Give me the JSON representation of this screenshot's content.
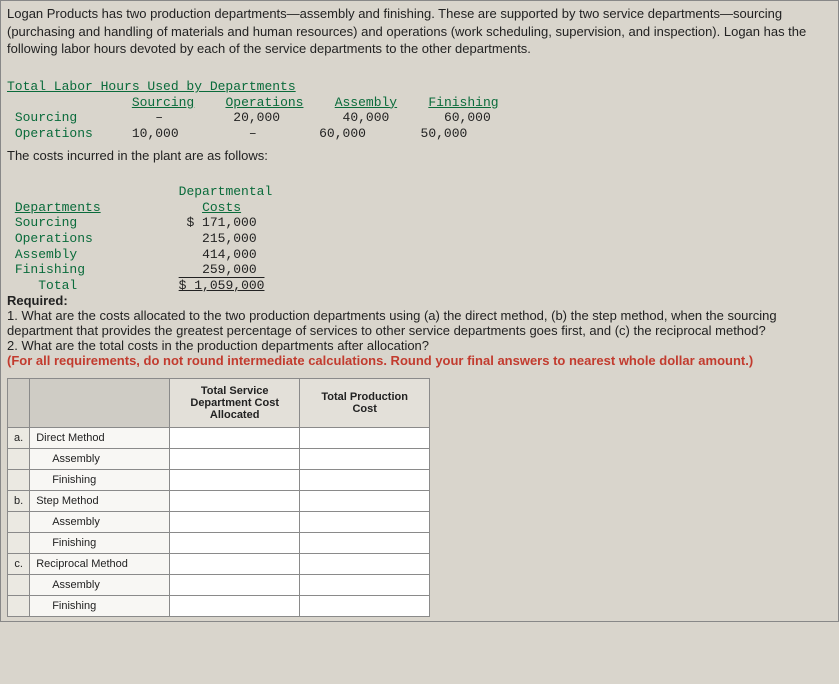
{
  "intro": "Logan Products has two production departments—assembly and finishing. These are supported by two service departments—sourcing (purchasing and handling of materials and human resources) and operations (work scheduling, supervision, and inspection). Logan has the following labor hours devoted by each of the service departments to the other departments.",
  "laborTable": {
    "title": "Total Labor Hours Used by Departments",
    "cols": [
      "Sourcing",
      "Operations",
      "Assembly",
      "Finishing"
    ],
    "rows": [
      {
        "label": "Sourcing",
        "cells": [
          "–",
          "20,000",
          "40,000",
          "60,000"
        ]
      },
      {
        "label": "Operations",
        "cells": [
          "10,000",
          "–",
          "60,000",
          "50,000"
        ]
      }
    ]
  },
  "narr1": "The costs incurred in the plant are as follows:",
  "costTable": {
    "header": [
      "Departments",
      "Departmental Costs"
    ],
    "rows": [
      {
        "label": "Sourcing",
        "val": "$ 171,000"
      },
      {
        "label": "Operations",
        "val": "215,000"
      },
      {
        "label": "Assembly",
        "val": "414,000"
      },
      {
        "label": "Finishing",
        "val": "259,000"
      },
      {
        "label": "Total",
        "val": "$ 1,059,000"
      }
    ]
  },
  "required": {
    "head": "Required:",
    "q1": "1. What are the costs allocated to the two production departments using (a) the direct method, (b) the step method, when the sourcing department that provides the greatest percentage of services to other service departments goes first, and (c) the reciprocal method?",
    "q2": "2. What are the total costs in the production departments after allocation?",
    "note": "(For all requirements, do not round intermediate calculations. Round your final answers to nearest whole dollar amount.)"
  },
  "answer": {
    "headers": [
      "",
      "",
      "Total Service Department Cost Allocated",
      "Total Production Cost"
    ],
    "rows": [
      {
        "lab": "a.",
        "name": "Direct Method",
        "svc": "",
        "prod": ""
      },
      {
        "lab": "",
        "name": "Assembly",
        "svc": "",
        "prod": "",
        "indent": true
      },
      {
        "lab": "",
        "name": "Finishing",
        "svc": "",
        "prod": "",
        "indent": true
      },
      {
        "lab": "b.",
        "name": "Step Method",
        "svc": "",
        "prod": ""
      },
      {
        "lab": "",
        "name": "Assembly",
        "svc": "",
        "prod": "",
        "indent": true
      },
      {
        "lab": "",
        "name": "Finishing",
        "svc": "",
        "prod": "",
        "indent": true
      },
      {
        "lab": "c.",
        "name": "Reciprocal Method",
        "svc": "",
        "prod": ""
      },
      {
        "lab": "",
        "name": "Assembly",
        "svc": "",
        "prod": "",
        "indent": true
      },
      {
        "lab": "",
        "name": "Finishing",
        "svc": "",
        "prod": "",
        "indent": true
      }
    ]
  },
  "style": {
    "background": "#d9d5cc",
    "headerColor": "#0a6b3b",
    "noteColor": "#c23b2e",
    "gridBorder": "#8a8a8a",
    "gridHeaderBg": "#e3e0d9",
    "inputBg": "#ffffff"
  }
}
